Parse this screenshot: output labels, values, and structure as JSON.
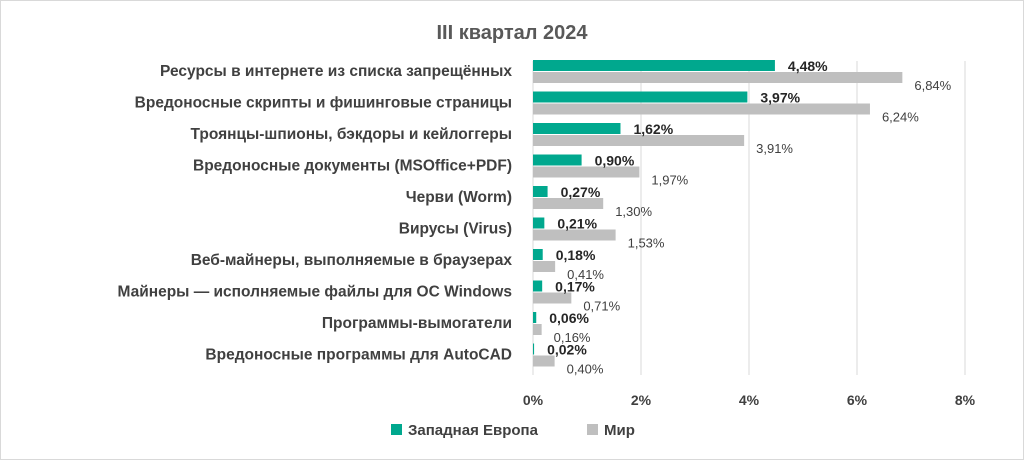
{
  "chart_data": {
    "type": "bar",
    "orientation": "horizontal",
    "title": "III квартал 2024",
    "categories": [
      "Ресурсы в интернете из списка запрещённых",
      "Вредоносные скрипты и фишинговые страницы",
      "Троянцы-шпионы, бэкдоры и кейлоггеры",
      "Вредоносные документы (MSOffice+PDF)",
      "Черви (Worm)",
      "Вирусы (Virus)",
      "Веб-майнеры, выполняемые в браузерах",
      "Майнеры — исполняемые файлы для ОС Windows",
      "Программы-вымогатели",
      "Вредоносные программы для AutoCAD"
    ],
    "series": [
      {
        "name": "Западная Европа",
        "color": "#00a88e",
        "values": [
          4.48,
          3.97,
          1.62,
          0.9,
          0.27,
          0.21,
          0.18,
          0.17,
          0.06,
          0.02
        ],
        "labels": [
          "4,48%",
          "3,97%",
          "1,62%",
          "0,90%",
          "0,27%",
          "0,21%",
          "0,18%",
          "0,17%",
          "0,06%",
          "0,02%"
        ]
      },
      {
        "name": "Мир",
        "color": "#bfbfbf",
        "values": [
          6.84,
          6.24,
          3.91,
          1.97,
          1.3,
          1.53,
          0.41,
          0.71,
          0.16,
          0.4
        ],
        "labels": [
          "6,84%",
          "6,24%",
          "3,91%",
          "1,97%",
          "1,30%",
          "1,53%",
          "0,41%",
          "0,71%",
          "0,16%",
          "0,40%"
        ]
      }
    ],
    "xlim": [
      0,
      8
    ],
    "xticks": [
      0,
      2,
      4,
      6,
      8
    ],
    "xtick_labels": [
      "0%",
      "2%",
      "4%",
      "6%",
      "8%"
    ],
    "grid": true,
    "legend_position": "bottom"
  }
}
